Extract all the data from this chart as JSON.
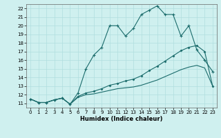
{
  "xlabel": "Humidex (Indice chaleur)",
  "xlim": [
    -0.5,
    23.5
  ],
  "ylim": [
    10.5,
    22.5
  ],
  "xticks": [
    0,
    1,
    2,
    3,
    4,
    5,
    6,
    7,
    8,
    9,
    10,
    11,
    12,
    13,
    14,
    15,
    16,
    17,
    18,
    19,
    20,
    21,
    22,
    23
  ],
  "yticks": [
    11,
    12,
    13,
    14,
    15,
    16,
    17,
    18,
    19,
    20,
    21,
    22
  ],
  "bg_color": "#cff0ef",
  "grid_color": "#b0dede",
  "line_color": "#1a6b6b",
  "line1_x": [
    0,
    1,
    2,
    3,
    4,
    5,
    6,
    7,
    8,
    9,
    10,
    11,
    12,
    13,
    14,
    15,
    16,
    17,
    18,
    19,
    20,
    21,
    22,
    23
  ],
  "line1_y": [
    11.5,
    11.1,
    11.1,
    11.4,
    11.6,
    10.9,
    12.2,
    15.0,
    16.6,
    17.5,
    20.0,
    20.0,
    18.8,
    19.7,
    21.3,
    21.8,
    22.3,
    21.3,
    21.3,
    18.8,
    20.0,
    17.2,
    16.0,
    14.7
  ],
  "line2_x": [
    0,
    1,
    2,
    3,
    4,
    5,
    6,
    7,
    8,
    9,
    10,
    11,
    12,
    13,
    14,
    15,
    16,
    17,
    18,
    19,
    20,
    21,
    22,
    23
  ],
  "line2_y": [
    11.5,
    11.1,
    11.1,
    11.4,
    11.6,
    10.9,
    11.8,
    12.2,
    12.4,
    12.7,
    13.1,
    13.3,
    13.6,
    13.8,
    14.2,
    14.8,
    15.3,
    15.9,
    16.5,
    17.1,
    17.5,
    17.7,
    17.0,
    13.0
  ],
  "line3_x": [
    0,
    1,
    2,
    3,
    4,
    5,
    6,
    7,
    8,
    9,
    10,
    11,
    12,
    13,
    14,
    15,
    16,
    17,
    18,
    19,
    20,
    21,
    22,
    23
  ],
  "line3_y": [
    11.5,
    11.1,
    11.1,
    11.4,
    11.6,
    10.9,
    11.7,
    12.0,
    12.1,
    12.3,
    12.5,
    12.7,
    12.8,
    12.9,
    13.1,
    13.4,
    13.7,
    14.1,
    14.5,
    14.9,
    15.2,
    15.4,
    15.1,
    13.0
  ]
}
